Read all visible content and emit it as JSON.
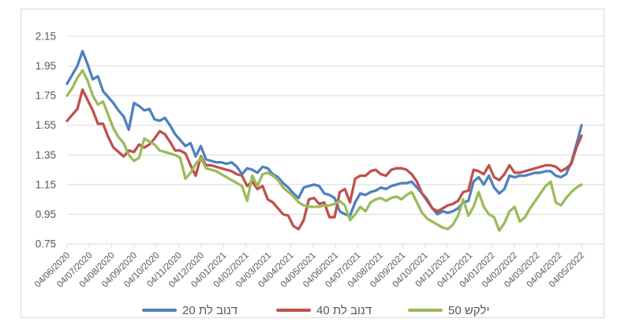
{
  "chart": {
    "background_color": "#FFFFFF",
    "border_color": "#D9D9D9",
    "gridline_color": "#D9D9D9",
    "axis_text_color": "#595959",
    "legend_text_color": "#595959",
    "title": ""
  },
  "chart_data": {
    "type": "line",
    "title": "",
    "xlabel": "",
    "ylabel": "",
    "ylim": [
      0.75,
      2.15
    ],
    "y_tick_labels": [
      "0.75",
      "0.95",
      "1.15",
      "1.35",
      "1.55",
      "1.75",
      "1.95",
      "2.15"
    ],
    "y_ticks": [
      0.75,
      0.95,
      1.15,
      1.35,
      1.55,
      1.75,
      1.95,
      2.15
    ],
    "grid": "horizontal",
    "legend_position": "bottom",
    "x_tick_labels": [
      "04/06/2020",
      "04/07/2020",
      "04/08/2020",
      "04/09/2020",
      "04/10/2020",
      "04/11/2020",
      "04/12/2020",
      "04/01/2021",
      "04/02/2021",
      "04/03/2021",
      "04/04/2021",
      "04/05/2021",
      "04/06/2021",
      "04/07/2021",
      "04/08/2021",
      "04/09/2021",
      "04/10/2021",
      "04/11/2021",
      "04/12/2021",
      "04/01/2022",
      "04/02/2022",
      "04/03/2022",
      "04/04/2022",
      "04/05/2022"
    ],
    "x_sampling": "weekly points spanning evenly from first tick 04/06/2020 to last tick 04/05/2022",
    "n_points": 101,
    "series": [
      {
        "name": "תל בונד 20",
        "display_label": "20 תל בונד",
        "color": "#4F81BD",
        "values": [
          1.83,
          1.89,
          1.95,
          2.05,
          1.96,
          1.86,
          1.88,
          1.78,
          1.74,
          1.7,
          1.65,
          1.61,
          1.52,
          1.7,
          1.68,
          1.65,
          1.66,
          1.59,
          1.58,
          1.6,
          1.55,
          1.49,
          1.45,
          1.41,
          1.43,
          1.34,
          1.41,
          1.32,
          1.31,
          1.3,
          1.3,
          1.29,
          1.3,
          1.27,
          1.22,
          1.26,
          1.25,
          1.23,
          1.27,
          1.26,
          1.22,
          1.2,
          1.16,
          1.13,
          1.09,
          1.06,
          1.13,
          1.14,
          1.15,
          1.14,
          1.09,
          1.08,
          1.06,
          0.97,
          0.95,
          0.94,
          1.03,
          1.09,
          1.08,
          1.1,
          1.11,
          1.13,
          1.12,
          1.14,
          1.15,
          1.16,
          1.16,
          1.17,
          1.13,
          1.09,
          1.05,
          0.99,
          0.95,
          0.97,
          0.96,
          0.97,
          0.99,
          1.03,
          1.04,
          1.17,
          1.2,
          1.15,
          1.21,
          1.13,
          1.09,
          1.12,
          1.21,
          1.2,
          1.21,
          1.21,
          1.22,
          1.23,
          1.23,
          1.24,
          1.24,
          1.21,
          1.2,
          1.22,
          1.3,
          1.42,
          1.55
        ]
      },
      {
        "name": "תל בונד 40",
        "display_label": "40 תל בונד",
        "color": "#C0504D",
        "values": [
          1.58,
          1.62,
          1.66,
          1.79,
          1.72,
          1.65,
          1.56,
          1.56,
          1.47,
          1.4,
          1.37,
          1.34,
          1.38,
          1.37,
          1.42,
          1.4,
          1.42,
          1.46,
          1.51,
          1.49,
          1.44,
          1.38,
          1.38,
          1.36,
          1.28,
          1.21,
          1.34,
          1.28,
          1.28,
          1.27,
          1.26,
          1.25,
          1.24,
          1.22,
          1.21,
          1.14,
          1.17,
          1.12,
          1.14,
          1.05,
          1.03,
          0.99,
          0.95,
          0.94,
          0.87,
          0.85,
          0.91,
          1.05,
          1.06,
          1.02,
          1.03,
          0.93,
          0.93,
          1.1,
          1.12,
          1.03,
          1.19,
          1.21,
          1.21,
          1.24,
          1.25,
          1.22,
          1.21,
          1.25,
          1.26,
          1.26,
          1.25,
          1.22,
          1.17,
          1.09,
          1.04,
          0.99,
          0.97,
          0.99,
          1.01,
          1.02,
          1.04,
          1.1,
          1.11,
          1.25,
          1.24,
          1.22,
          1.28,
          1.2,
          1.18,
          1.22,
          1.28,
          1.23,
          1.23,
          1.24,
          1.25,
          1.26,
          1.27,
          1.28,
          1.28,
          1.27,
          1.24,
          1.26,
          1.29,
          1.4,
          1.48
        ]
      },
      {
        "name": "שקלי 50",
        "display_label": "50 שקלי",
        "color": "#9BBB59",
        "values": [
          1.75,
          1.8,
          1.87,
          1.92,
          1.85,
          1.75,
          1.69,
          1.71,
          1.62,
          1.53,
          1.47,
          1.43,
          1.35,
          1.31,
          1.33,
          1.46,
          1.44,
          1.42,
          1.38,
          1.37,
          1.36,
          1.35,
          1.33,
          1.19,
          1.23,
          1.29,
          1.33,
          1.26,
          1.25,
          1.24,
          1.22,
          1.2,
          1.18,
          1.16,
          1.14,
          1.04,
          1.21,
          1.14,
          1.22,
          1.23,
          1.21,
          1.18,
          1.13,
          1.1,
          1.07,
          1.03,
          1.01,
          1.0,
          1.0,
          1.0,
          1.01,
          1.01,
          1.02,
          1.04,
          1.01,
          0.91,
          0.95,
          1.0,
          0.97,
          1.03,
          1.05,
          1.06,
          1.04,
          1.06,
          1.07,
          1.05,
          1.08,
          1.1,
          1.03,
          0.96,
          0.92,
          0.9,
          0.88,
          0.86,
          0.85,
          0.88,
          0.94,
          1.05,
          0.94,
          1.0,
          1.1,
          1.0,
          0.95,
          0.93,
          0.84,
          0.89,
          0.97,
          1.0,
          0.9,
          0.93,
          0.99,
          1.04,
          1.09,
          1.14,
          1.17,
          1.03,
          1.01,
          1.06,
          1.1,
          1.13,
          1.15
        ]
      }
    ]
  }
}
